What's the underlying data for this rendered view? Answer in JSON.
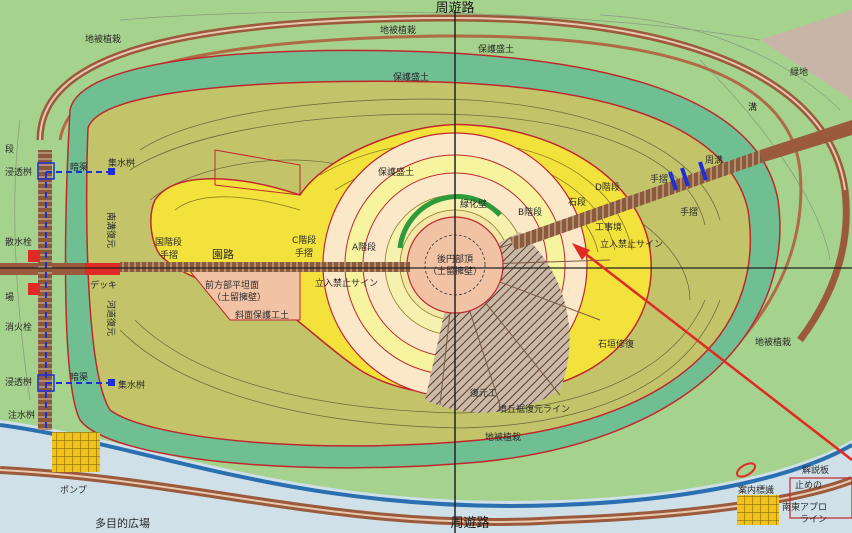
{
  "map": {
    "title_top": "周遊路",
    "title_bottom": "周遊路",
    "labels": {
      "hozen_ryokudo_1": "保護盛土",
      "hozen_ryokudo_2": "保護盛土",
      "hozen_ryokudo_3": "保護盛土",
      "chisei_shokusai_1": "地被植栽",
      "chisei_shokusai_2": "地被植栽",
      "chisei_shokusai_3": "地被植栽",
      "chisei_shokusai_4": "地被植栽",
      "haisui_1": "暗渠",
      "haisui_2": "暗渠",
      "shusui_1": "集水桝",
      "shusui_2": "集水桝",
      "shinto_1": "浸透桝",
      "shinto_2": "浸透桝",
      "chusui": "注水桝",
      "hazard_west": "南溝復元",
      "sonro": "園路",
      "kaidan_1": "国階段",
      "kaidan_2": "C階段",
      "kaidan_3": "A階段",
      "kaidan_4": "B階段",
      "kaidan_5": "D階段",
      "tesuri_1": "手摺",
      "tesuri_2": "手摺",
      "tesuri_3": "手摺",
      "tesuri_4": "手摺",
      "deck": "デッキ",
      "hori": "周溝",
      "fukugen": "河道復元",
      "kouen_line": "立入禁止サイン",
      "kouen_line_2": "立入禁止サイン",
      "zenpou": "前方部平坦面",
      "zenpou_sub": "（土留擁壁）",
      "koho": "後円部頂",
      "koho_sub": "（土留擁壁）",
      "shaku": "斜面保護工土",
      "sekkoku": "石垣修復",
      "hanrei_line": "墳丘裾復元ライン",
      "kaidan_side": "石段",
      "kenjo": "緑化壁",
      "fukugen_2": "復元工",
      "pump": "ポンプ",
      "tamokuteki": "多目的広場",
      "kaisetsu": "解説板",
      "annai": "案内標識",
      "tomare": "止めの",
      "access": "南東アプロ",
      "access_2": "ライン",
      "kouji": "工事境",
      "left_a": "段",
      "left_b": "散水栓",
      "left_c": "場",
      "left_d": "消火栓",
      "ichi": "緑地",
      "mizo": "溝"
    }
  }
}
